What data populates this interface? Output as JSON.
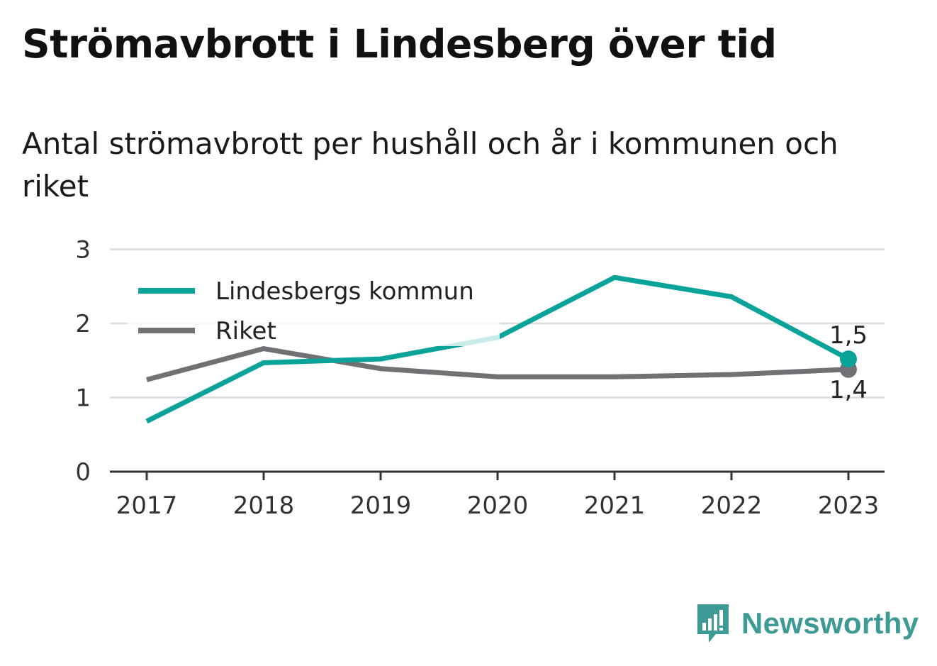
{
  "title": "Strömavbrott i Lindesberg över tid",
  "subtitle": "Antal strömavbrott per hushåll och år i kommunen och riket",
  "brand": {
    "name": "Newsworthy",
    "icon": "newsworthy-logo-icon"
  },
  "colors": {
    "kommun": "#0aa39a",
    "riket": "#717075",
    "grid": "#dcdcdc",
    "axis": "#333333"
  },
  "chart_data": {
    "type": "line",
    "title": "Strömavbrott i Lindesberg över tid",
    "subtitle": "Antal strömavbrott per hushåll och år i kommunen och riket",
    "x": [
      "2017",
      "2018",
      "2019",
      "2020",
      "2021",
      "2022",
      "2023"
    ],
    "ylim": [
      0,
      3
    ],
    "yticks": [
      "0",
      "1",
      "2",
      "3"
    ],
    "grid": true,
    "legend_position": "top-left",
    "series": [
      {
        "name": "Lindesbergs kommun",
        "values": [
          0.68,
          1.47,
          1.52,
          1.81,
          2.62,
          2.36,
          1.52
        ]
      },
      {
        "name": "Riket",
        "values": [
          1.24,
          1.66,
          1.39,
          1.28,
          1.28,
          1.31,
          1.38
        ]
      }
    ],
    "end_labels": [
      "1,5",
      "1,4"
    ]
  }
}
